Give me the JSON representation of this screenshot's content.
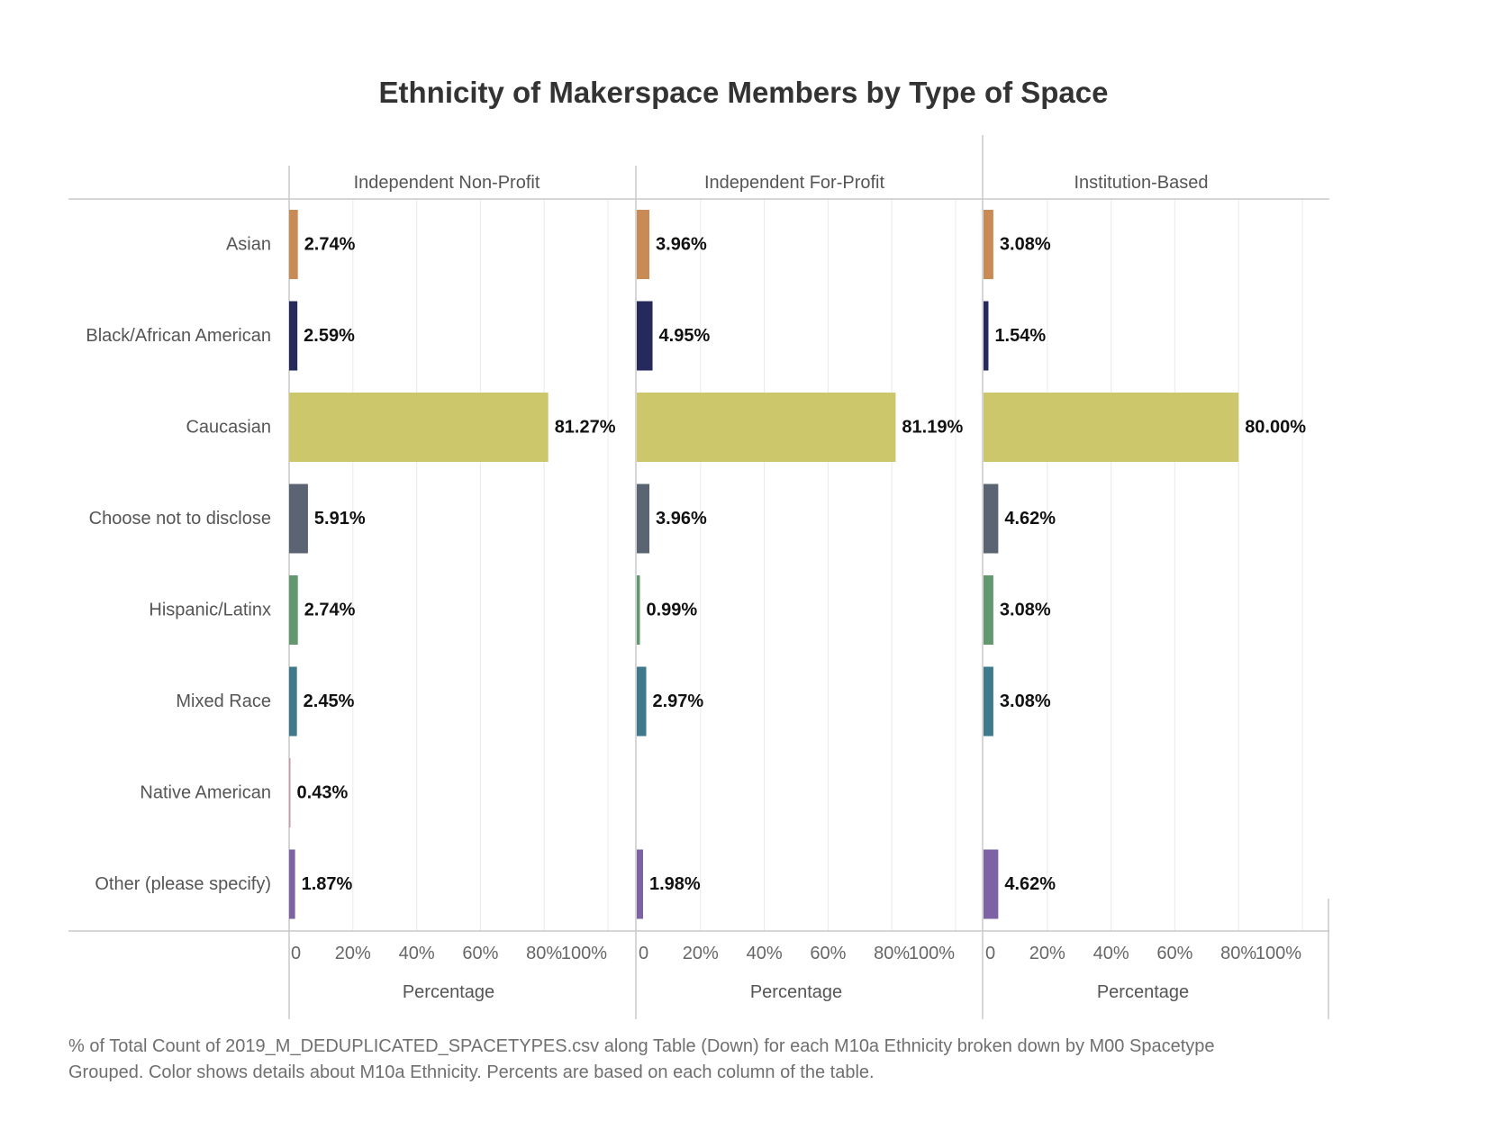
{
  "title": "Ethnicity of Makerspace Members by Type of Space",
  "footnote": "% of Total Count of 2019_M_DEDUPLICATED_SPACETYPES.csv along Table (Down) for each M10a Ethnicity broken down by M00 Spacetype Grouped.  Color shows details about M10a Ethnicity. Percents are based on each column of the table.",
  "chart_data": {
    "type": "bar",
    "orientation": "horizontal",
    "title": "Ethnicity of Makerspace Members by Type of Space",
    "categories": [
      "Asian",
      "Black/African American",
      "Caucasian",
      "Choose not to disclose",
      "Hispanic/Latinx",
      "Mixed Race",
      "Native American",
      "Other (please specify)"
    ],
    "colors": [
      "#c98b55",
      "#25295c",
      "#ccc76a",
      "#5a6472",
      "#63986f",
      "#3e7a8c",
      "#c69ba5",
      "#7d63a3"
    ],
    "xlabel": "Percentage",
    "xlim": [
      0,
      100
    ],
    "xticks": [
      "0",
      "20%",
      "40%",
      "60%",
      "80%",
      "100%"
    ],
    "grid": true,
    "series": [
      {
        "name": "Independent Non-Profit",
        "values": [
          2.74,
          2.59,
          81.27,
          5.91,
          2.74,
          2.45,
          0.43,
          1.87
        ],
        "labels": [
          "2.74%",
          "2.59%",
          "81.27%",
          "5.91%",
          "2.74%",
          "2.45%",
          "0.43%",
          "1.87%"
        ]
      },
      {
        "name": "Independent For-Profit",
        "values": [
          3.96,
          4.95,
          81.19,
          3.96,
          0.99,
          2.97,
          null,
          1.98
        ],
        "labels": [
          "3.96%",
          "4.95%",
          "81.19%",
          "3.96%",
          "0.99%",
          "2.97%",
          "",
          "1.98%"
        ]
      },
      {
        "name": "Institution-Based",
        "values": [
          3.08,
          1.54,
          80.0,
          4.62,
          3.08,
          3.08,
          null,
          4.62
        ],
        "labels": [
          "3.08%",
          "1.54%",
          "80.00%",
          "4.62%",
          "3.08%",
          "3.08%",
          "",
          "4.62%"
        ]
      }
    ]
  }
}
